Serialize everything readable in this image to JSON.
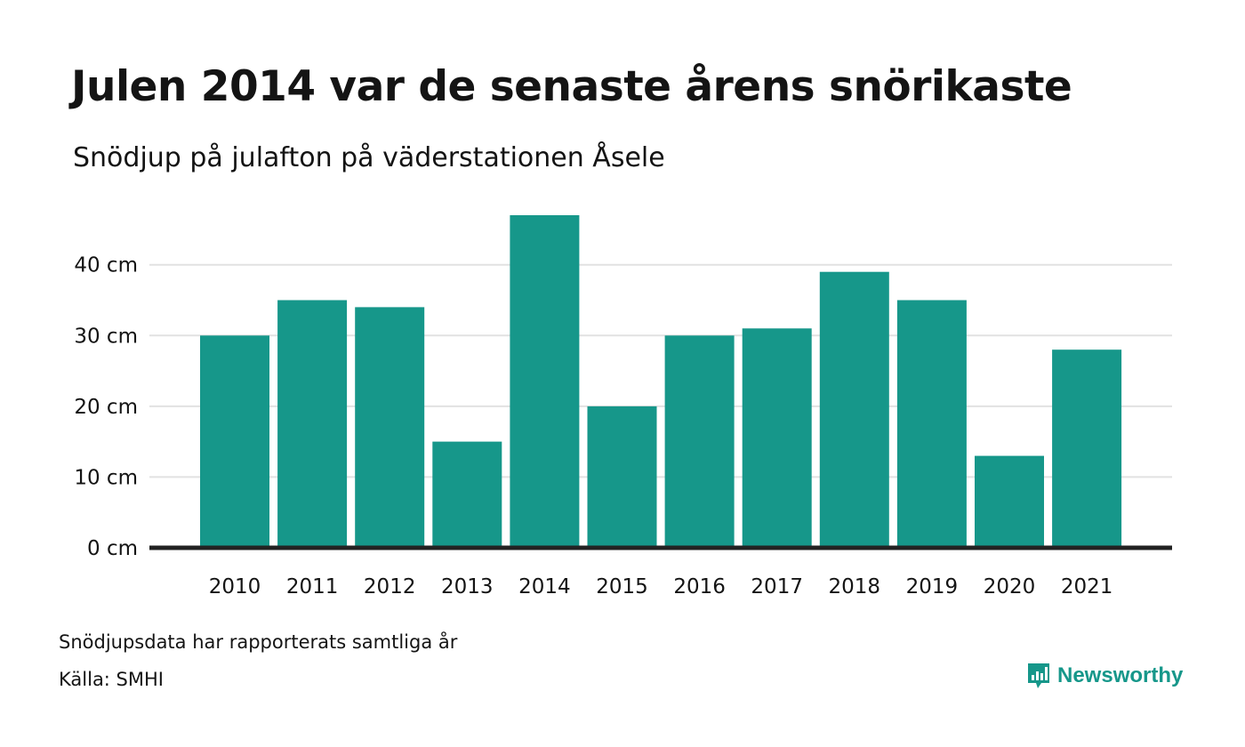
{
  "title": "Julen 2014 var de senaste årens snörikaste",
  "subtitle": "Snödjup på julafton på väderstationen Åsele",
  "notes": {
    "data_note": "Snödjupsdata har rapporterats samtliga år",
    "source": "Källa: SMHI"
  },
  "brand": {
    "name": "Newsworthy",
    "icon": "newsworthy-logo-icon"
  },
  "colors": {
    "bar": "#16978a",
    "grid": "#e2e2e2",
    "baseline": "#222222"
  },
  "chart_data": {
    "type": "bar",
    "categories": [
      "2010",
      "2011",
      "2012",
      "2013",
      "2014",
      "2015",
      "2016",
      "2017",
      "2018",
      "2019",
      "2020",
      "2021"
    ],
    "values": [
      30,
      35,
      34,
      15,
      47,
      20,
      30,
      31,
      39,
      35,
      13,
      28
    ],
    "unit": "cm",
    "yticks": [
      0,
      10,
      20,
      30,
      40
    ],
    "ytick_labels": [
      "0 cm",
      "10 cm",
      "20 cm",
      "30 cm",
      "40 cm"
    ],
    "ylim": [
      0,
      47
    ],
    "grid": true,
    "legend": false
  }
}
